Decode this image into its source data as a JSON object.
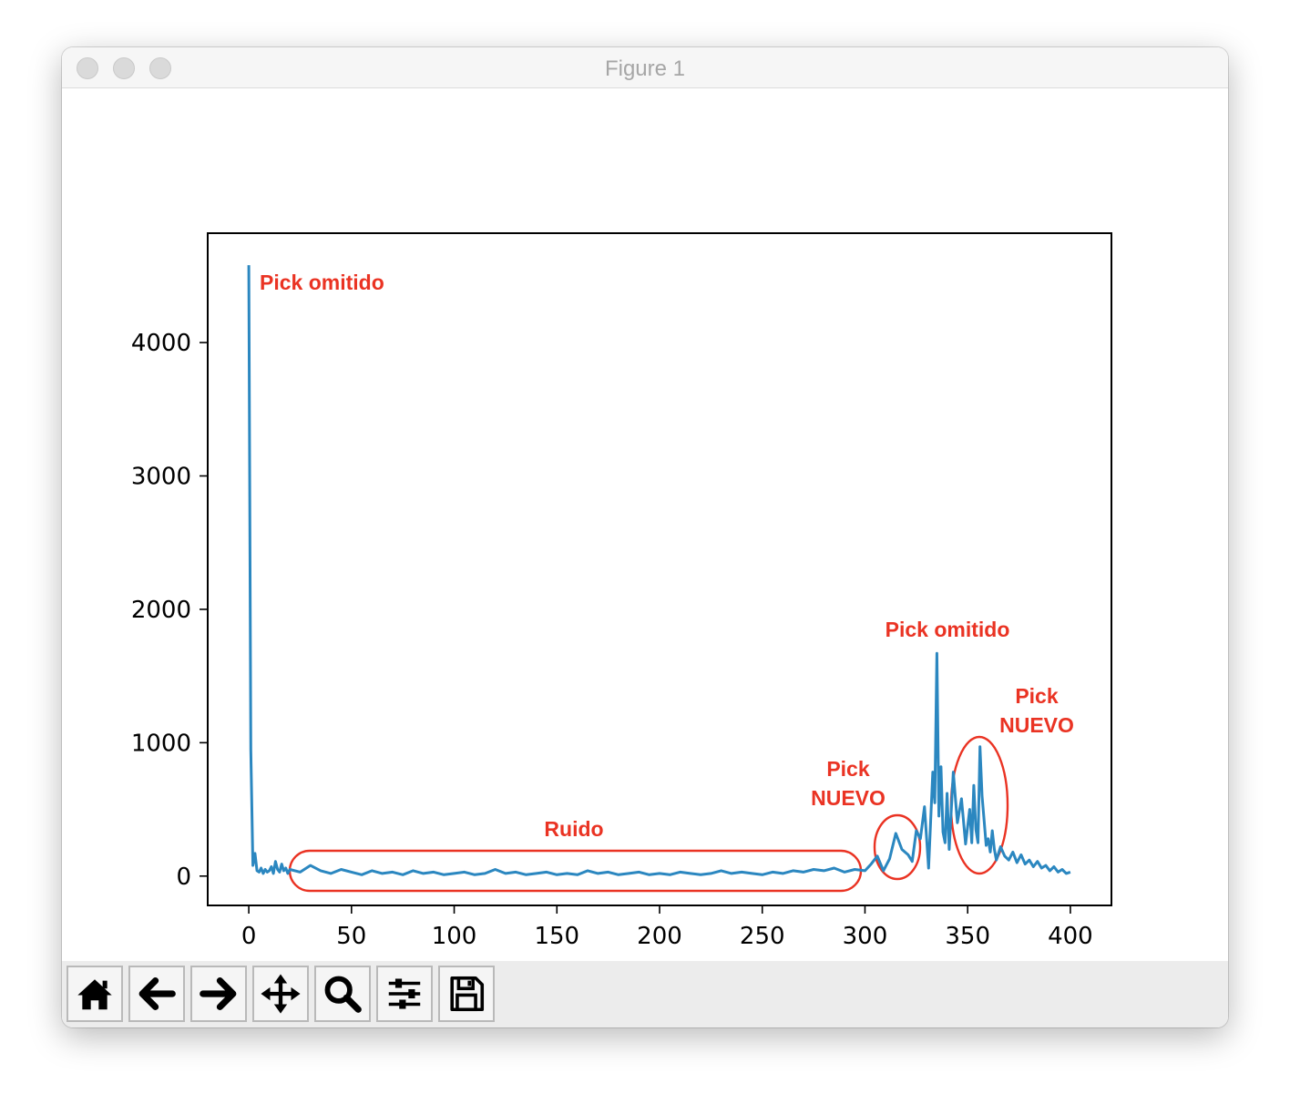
{
  "window": {
    "title": "Figure 1"
  },
  "toolbar": {
    "buttons": [
      {
        "name": "home-button",
        "icon": "home-icon"
      },
      {
        "name": "back-button",
        "icon": "arrow-left-icon"
      },
      {
        "name": "forward-button",
        "icon": "arrow-right-icon"
      },
      {
        "name": "pan-button",
        "icon": "move-icon"
      },
      {
        "name": "zoom-button",
        "icon": "magnifier-icon"
      },
      {
        "name": "configure-subplots-button",
        "icon": "sliders-icon"
      },
      {
        "name": "save-button",
        "icon": "floppy-disk-icon"
      }
    ]
  },
  "colors": {
    "line": "#2b87c0",
    "annotation": "#ea3323"
  },
  "chart_data": {
    "type": "line",
    "title": "",
    "xlabel": "",
    "ylabel": "",
    "xlim": [
      -20,
      420
    ],
    "ylim": [
      -220,
      4820
    ],
    "xticks": [
      0,
      50,
      100,
      150,
      200,
      250,
      300,
      350,
      400
    ],
    "yticks": [
      0,
      1000,
      2000,
      3000,
      4000
    ],
    "grid": false,
    "legend": "none",
    "series": [
      {
        "points": [
          [
            0,
            4580
          ],
          [
            1,
            950
          ],
          [
            2,
            80
          ],
          [
            3,
            170
          ],
          [
            4,
            40
          ],
          [
            5,
            30
          ],
          [
            6,
            60
          ],
          [
            7,
            20
          ],
          [
            8,
            50
          ],
          [
            9,
            30
          ],
          [
            10,
            40
          ],
          [
            11,
            70
          ],
          [
            12,
            20
          ],
          [
            13,
            110
          ],
          [
            14,
            50
          ],
          [
            15,
            30
          ],
          [
            16,
            90
          ],
          [
            17,
            40
          ],
          [
            18,
            60
          ],
          [
            19,
            20
          ],
          [
            20,
            50
          ],
          [
            25,
            30
          ],
          [
            30,
            80
          ],
          [
            35,
            40
          ],
          [
            40,
            20
          ],
          [
            45,
            50
          ],
          [
            50,
            30
          ],
          [
            55,
            10
          ],
          [
            60,
            40
          ],
          [
            65,
            20
          ],
          [
            70,
            30
          ],
          [
            75,
            10
          ],
          [
            80,
            40
          ],
          [
            85,
            20
          ],
          [
            90,
            30
          ],
          [
            95,
            10
          ],
          [
            100,
            20
          ],
          [
            105,
            30
          ],
          [
            110,
            10
          ],
          [
            115,
            20
          ],
          [
            120,
            50
          ],
          [
            125,
            20
          ],
          [
            130,
            30
          ],
          [
            135,
            10
          ],
          [
            140,
            20
          ],
          [
            145,
            30
          ],
          [
            150,
            10
          ],
          [
            155,
            20
          ],
          [
            160,
            10
          ],
          [
            165,
            40
          ],
          [
            170,
            20
          ],
          [
            175,
            30
          ],
          [
            180,
            10
          ],
          [
            185,
            20
          ],
          [
            190,
            30
          ],
          [
            195,
            10
          ],
          [
            200,
            20
          ],
          [
            205,
            10
          ],
          [
            210,
            30
          ],
          [
            215,
            20
          ],
          [
            220,
            10
          ],
          [
            225,
            20
          ],
          [
            230,
            40
          ],
          [
            235,
            20
          ],
          [
            240,
            30
          ],
          [
            245,
            20
          ],
          [
            250,
            10
          ],
          [
            255,
            30
          ],
          [
            260,
            20
          ],
          [
            265,
            40
          ],
          [
            270,
            30
          ],
          [
            275,
            50
          ],
          [
            280,
            40
          ],
          [
            285,
            60
          ],
          [
            290,
            30
          ],
          [
            295,
            50
          ],
          [
            300,
            40
          ],
          [
            303,
            90
          ],
          [
            306,
            150
          ],
          [
            309,
            40
          ],
          [
            312,
            130
          ],
          [
            315,
            320
          ],
          [
            318,
            200
          ],
          [
            321,
            160
          ],
          [
            323,
            110
          ],
          [
            325,
            340
          ],
          [
            327,
            280
          ],
          [
            329,
            520
          ],
          [
            331,
            60
          ],
          [
            333,
            780
          ],
          [
            334,
            550
          ],
          [
            335,
            1670
          ],
          [
            336,
            450
          ],
          [
            337,
            820
          ],
          [
            338,
            330
          ],
          [
            339,
            250
          ],
          [
            340,
            620
          ],
          [
            341,
            200
          ],
          [
            343,
            780
          ],
          [
            345,
            400
          ],
          [
            347,
            580
          ],
          [
            349,
            240
          ],
          [
            351,
            500
          ],
          [
            352,
            250
          ],
          [
            353,
            680
          ],
          [
            354,
            350
          ],
          [
            355,
            250
          ],
          [
            356,
            970
          ],
          [
            357,
            600
          ],
          [
            358,
            420
          ],
          [
            359,
            230
          ],
          [
            360,
            280
          ],
          [
            361,
            180
          ],
          [
            362,
            340
          ],
          [
            363,
            200
          ],
          [
            364,
            120
          ],
          [
            366,
            220
          ],
          [
            368,
            150
          ],
          [
            370,
            120
          ],
          [
            372,
            180
          ],
          [
            374,
            100
          ],
          [
            376,
            160
          ],
          [
            378,
            90
          ],
          [
            380,
            120
          ],
          [
            382,
            70
          ],
          [
            384,
            110
          ],
          [
            386,
            60
          ],
          [
            388,
            80
          ],
          [
            390,
            40
          ],
          [
            392,
            70
          ],
          [
            394,
            30
          ],
          [
            396,
            50
          ],
          [
            398,
            20
          ],
          [
            400,
            30
          ]
        ]
      }
    ],
    "annotations": [
      {
        "text": "Pick omitido"
      },
      {
        "text": "Ruido"
      },
      {
        "text": "Pick NUEVO"
      },
      {
        "text": "Pick omitido"
      },
      {
        "text": "Pick NUEVO"
      }
    ]
  }
}
